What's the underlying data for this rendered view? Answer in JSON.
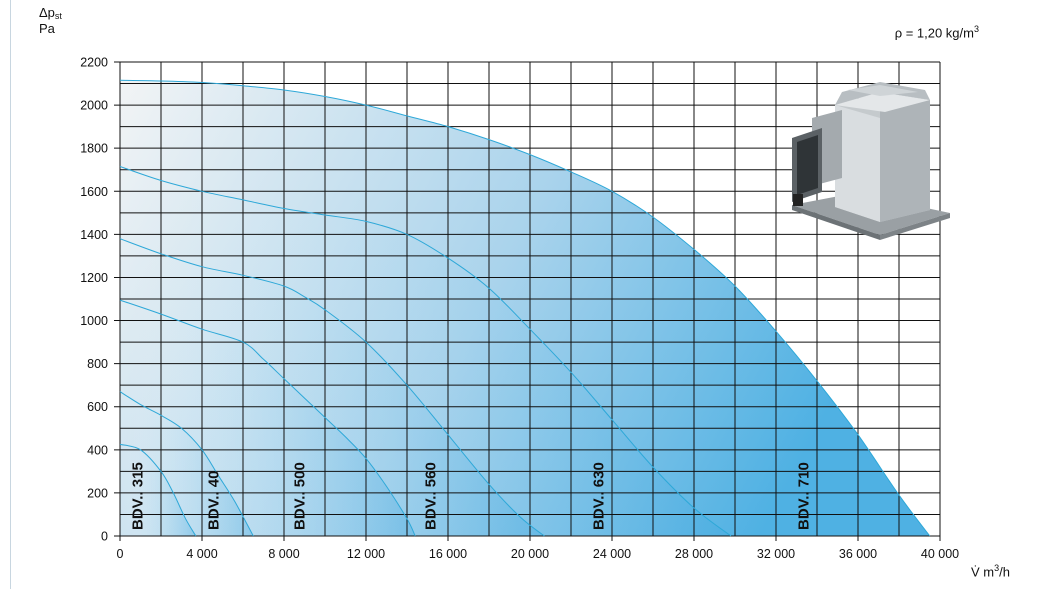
{
  "header": {
    "y_symbol": "Δp",
    "y_symbol_sub": "st",
    "y_unit": "Pa",
    "density_label": "ρ = 1,20 kg/m",
    "density_sup": "3",
    "x_unit_prefix": "V̇ m",
    "x_unit_sup": "3",
    "x_unit_suffix": "/h"
  },
  "image": {
    "description_icon": "roof-fan-product-photo"
  },
  "colors": {
    "curve": "#2ea8d8",
    "fill_light": "#f2f4f5",
    "fill_dark": "#4fb1e3",
    "grid": "#111111"
  },
  "chart_data": {
    "type": "line",
    "xlabel": "V̇ m³/h",
    "ylabel": "Δpst Pa",
    "xlim": [
      0,
      40000
    ],
    "ylim": [
      0,
      2200
    ],
    "x_ticks": [
      0,
      4000,
      8000,
      12000,
      16000,
      20000,
      24000,
      28000,
      32000,
      36000,
      40000
    ],
    "x_tick_labels": [
      "0",
      "4 000",
      "8 000",
      "12 000",
      "16 000",
      "20 000",
      "24 000",
      "28 000",
      "32 000",
      "36 000",
      "40 000"
    ],
    "y_ticks": [
      0,
      200,
      400,
      600,
      800,
      1000,
      1200,
      1400,
      1600,
      1800,
      2000,
      2200
    ],
    "y_tick_labels": [
      "0",
      "200",
      "400",
      "600",
      "800",
      "1000",
      "1200",
      "1400",
      "1600",
      "1800",
      "2000",
      "2200"
    ],
    "grid": true,
    "series": [
      {
        "name": "BDV.. 315",
        "label_x": 800,
        "x": [
          0,
          1000,
          2000,
          2600,
          3200,
          3700
        ],
        "y": [
          425,
          400,
          300,
          200,
          80,
          0
        ]
      },
      {
        "name": "BDV.. 40",
        "label_x": 4500,
        "x": [
          0,
          1000,
          2000,
          3000,
          4000,
          4800,
          5600,
          6500
        ],
        "y": [
          670,
          610,
          560,
          500,
          400,
          280,
          160,
          0
        ]
      },
      {
        "name": "BDV.. 500",
        "label_x": 8700,
        "x": [
          0,
          2000,
          4000,
          6000,
          7000,
          8000,
          9000,
          10000,
          11000,
          12000,
          13000,
          14000,
          14400
        ],
        "y": [
          1095,
          1030,
          960,
          900,
          820,
          730,
          640,
          550,
          460,
          360,
          230,
          80,
          0
        ]
      },
      {
        "name": "BDV.. 560",
        "label_x": 15100,
        "x": [
          0,
          2000,
          4000,
          6000,
          8000,
          9000,
          10000,
          12000,
          14000,
          16000,
          18000,
          19500,
          20700
        ],
        "y": [
          1380,
          1310,
          1250,
          1210,
          1160,
          1110,
          1050,
          900,
          700,
          470,
          240,
          90,
          0
        ]
      },
      {
        "name": "BDV.. 630",
        "label_x": 23300,
        "x": [
          0,
          2000,
          4000,
          6000,
          8000,
          10000,
          12000,
          14000,
          16000,
          18000,
          20000,
          22000,
          24000,
          26000,
          28000,
          29800
        ],
        "y": [
          1715,
          1650,
          1600,
          1560,
          1520,
          1490,
          1460,
          1400,
          1290,
          1150,
          960,
          760,
          540,
          320,
          130,
          0
        ]
      },
      {
        "name": "BDV.. 710",
        "label_x": 33300,
        "x": [
          0,
          2000,
          4000,
          6000,
          8000,
          10000,
          12000,
          14000,
          16000,
          18000,
          20000,
          22000,
          24000,
          26000,
          28000,
          30000,
          32000,
          34000,
          36000,
          38000,
          39500
        ],
        "y": [
          2115,
          2112,
          2105,
          2090,
          2070,
          2040,
          2000,
          1950,
          1900,
          1840,
          1770,
          1690,
          1600,
          1480,
          1330,
          1160,
          950,
          720,
          470,
          190,
          0
        ]
      }
    ]
  }
}
